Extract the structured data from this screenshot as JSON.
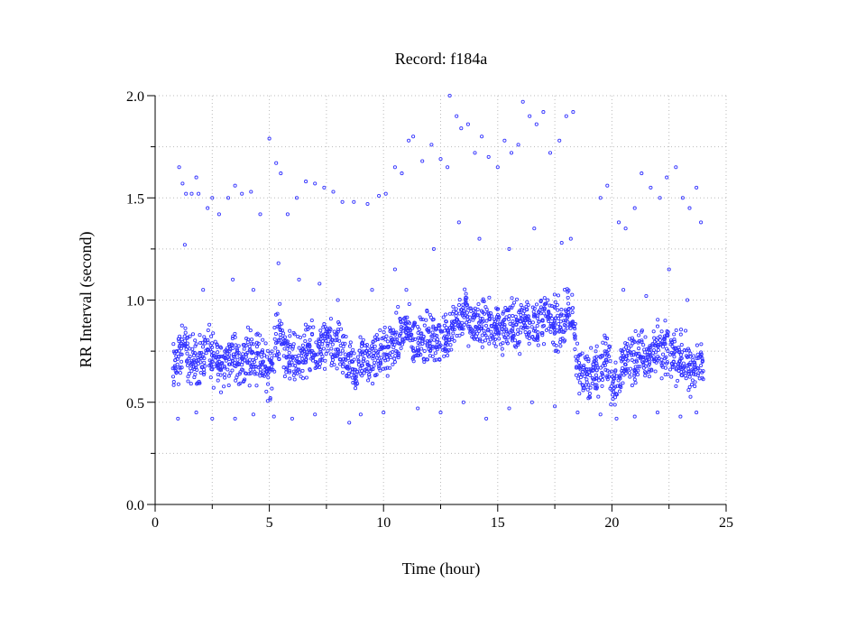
{
  "chart_data": {
    "type": "scatter",
    "title": "Record:  f184a",
    "xlabel": "Time (hour)",
    "ylabel": "RR Interval (second)",
    "xlim": [
      0,
      25
    ],
    "ylim": [
      0,
      2.0
    ],
    "x_ticks": [
      "0",
      "5",
      "10",
      "15",
      "20",
      "25"
    ],
    "y_ticks": [
      "0.0",
      "0.5",
      "1.0",
      "1.5",
      "2.0"
    ],
    "grid": true,
    "marker": "open circle",
    "series_color": "#3333ff",
    "main_trend": {
      "x": [
        0.75,
        1.0,
        1.25,
        1.5,
        1.75,
        2.0,
        2.25,
        2.5,
        2.75,
        3.0,
        3.25,
        3.5,
        3.75,
        4.0,
        4.25,
        4.5,
        4.75,
        5.0,
        5.25,
        5.5,
        5.75,
        6.0,
        6.25,
        6.5,
        6.75,
        7.0,
        7.25,
        7.5,
        7.75,
        8.0,
        8.25,
        8.5,
        8.75,
        9.0,
        9.25,
        9.5,
        9.75,
        10.0,
        10.25,
        10.5,
        10.75,
        11.0,
        11.25,
        11.5,
        11.75,
        12.0,
        12.25,
        12.5,
        12.75,
        13.0,
        13.25,
        13.5,
        13.75,
        14.0,
        14.25,
        14.5,
        14.75,
        15.0,
        15.25,
        15.5,
        15.75,
        16.0,
        16.25,
        16.5,
        16.75,
        17.0,
        17.25,
        17.5,
        17.75,
        18.0,
        18.25,
        18.5,
        18.75,
        19.0,
        19.25,
        19.5,
        19.75,
        20.0,
        20.25,
        20.5,
        20.75,
        21.0,
        21.25,
        21.5,
        21.75,
        22.0,
        22.25,
        22.5,
        22.75,
        23.0,
        23.25,
        23.5,
        23.75,
        24.0
      ],
      "y": [
        0.65,
        0.72,
        0.75,
        0.72,
        0.7,
        0.72,
        0.75,
        0.72,
        0.7,
        0.7,
        0.72,
        0.72,
        0.68,
        0.72,
        0.75,
        0.72,
        0.7,
        0.62,
        0.8,
        0.85,
        0.72,
        0.7,
        0.72,
        0.75,
        0.75,
        0.74,
        0.76,
        0.78,
        0.77,
        0.76,
        0.72,
        0.68,
        0.65,
        0.7,
        0.72,
        0.7,
        0.74,
        0.73,
        0.76,
        0.8,
        0.82,
        0.88,
        0.78,
        0.82,
        0.83,
        0.8,
        0.8,
        0.82,
        0.82,
        0.88,
        0.92,
        0.93,
        0.9,
        0.88,
        0.88,
        0.9,
        0.86,
        0.88,
        0.87,
        0.88,
        0.85,
        0.9,
        0.9,
        0.9,
        0.88,
        0.92,
        0.9,
        0.88,
        0.88,
        0.92,
        0.92,
        0.68,
        0.65,
        0.62,
        0.66,
        0.7,
        0.72,
        0.6,
        0.62,
        0.7,
        0.72,
        0.72,
        0.74,
        0.72,
        0.7,
        0.76,
        0.74,
        0.75,
        0.72,
        0.72,
        0.7,
        0.62,
        0.68,
        0.7
      ]
    },
    "outliers": [
      [
        1.05,
        1.65
      ],
      [
        1.2,
        1.57
      ],
      [
        1.35,
        1.52
      ],
      [
        1.6,
        1.52
      ],
      [
        1.8,
        1.6
      ],
      [
        1.9,
        1.52
      ],
      [
        2.3,
        1.45
      ],
      [
        2.5,
        1.5
      ],
      [
        2.8,
        1.42
      ],
      [
        3.2,
        1.5
      ],
      [
        3.5,
        1.56
      ],
      [
        3.8,
        1.52
      ],
      [
        4.2,
        1.53
      ],
      [
        4.6,
        1.42
      ],
      [
        5.0,
        1.79
      ],
      [
        5.3,
        1.67
      ],
      [
        5.5,
        1.62
      ],
      [
        5.8,
        1.42
      ],
      [
        6.2,
        1.5
      ],
      [
        6.6,
        1.58
      ],
      [
        7.0,
        1.57
      ],
      [
        7.4,
        1.55
      ],
      [
        7.8,
        1.53
      ],
      [
        8.2,
        1.48
      ],
      [
        8.7,
        1.48
      ],
      [
        9.3,
        1.47
      ],
      [
        9.8,
        1.51
      ],
      [
        10.1,
        1.52
      ],
      [
        10.5,
        1.65
      ],
      [
        10.8,
        1.62
      ],
      [
        11.1,
        1.78
      ],
      [
        11.3,
        1.8
      ],
      [
        11.7,
        1.68
      ],
      [
        12.1,
        1.76
      ],
      [
        12.5,
        1.69
      ],
      [
        12.8,
        1.65
      ],
      [
        12.9,
        2.0
      ],
      [
        13.2,
        1.9
      ],
      [
        13.4,
        1.84
      ],
      [
        13.7,
        1.86
      ],
      [
        14.0,
        1.72
      ],
      [
        14.3,
        1.8
      ],
      [
        14.6,
        1.7
      ],
      [
        15.0,
        1.65
      ],
      [
        15.3,
        1.78
      ],
      [
        15.6,
        1.72
      ],
      [
        15.9,
        1.76
      ],
      [
        16.1,
        1.97
      ],
      [
        16.4,
        1.9
      ],
      [
        16.7,
        1.86
      ],
      [
        17.0,
        1.92
      ],
      [
        17.3,
        1.72
      ],
      [
        17.7,
        1.78
      ],
      [
        18.0,
        1.9
      ],
      [
        18.3,
        1.92
      ],
      [
        19.5,
        1.5
      ],
      [
        19.8,
        1.56
      ],
      [
        20.3,
        1.38
      ],
      [
        20.6,
        1.35
      ],
      [
        21.0,
        1.45
      ],
      [
        21.3,
        1.62
      ],
      [
        21.7,
        1.55
      ],
      [
        22.1,
        1.5
      ],
      [
        22.4,
        1.6
      ],
      [
        22.8,
        1.65
      ],
      [
        23.1,
        1.5
      ],
      [
        23.4,
        1.45
      ],
      [
        23.7,
        1.55
      ],
      [
        23.9,
        1.38
      ],
      [
        1.3,
        1.27
      ],
      [
        2.1,
        1.05
      ],
      [
        3.4,
        1.1
      ],
      [
        4.3,
        1.05
      ],
      [
        5.4,
        1.18
      ],
      [
        6.3,
        1.1
      ],
      [
        7.2,
        1.08
      ],
      [
        8.0,
        1.0
      ],
      [
        9.5,
        1.05
      ],
      [
        10.5,
        1.15
      ],
      [
        11.0,
        1.05
      ],
      [
        12.2,
        1.25
      ],
      [
        13.3,
        1.38
      ],
      [
        14.2,
        1.3
      ],
      [
        15.5,
        1.25
      ],
      [
        16.6,
        1.35
      ],
      [
        17.8,
        1.28
      ],
      [
        18.2,
        1.3
      ],
      [
        20.5,
        1.05
      ],
      [
        21.5,
        1.02
      ],
      [
        22.5,
        1.15
      ],
      [
        23.3,
        1.0
      ],
      [
        1.0,
        0.42
      ],
      [
        1.8,
        0.45
      ],
      [
        2.5,
        0.42
      ],
      [
        3.5,
        0.42
      ],
      [
        4.3,
        0.44
      ],
      [
        5.2,
        0.43
      ],
      [
        6.0,
        0.42
      ],
      [
        7.0,
        0.44
      ],
      [
        8.5,
        0.4
      ],
      [
        9.0,
        0.44
      ],
      [
        10.0,
        0.45
      ],
      [
        11.5,
        0.47
      ],
      [
        12.5,
        0.45
      ],
      [
        13.5,
        0.5
      ],
      [
        14.5,
        0.42
      ],
      [
        15.5,
        0.47
      ],
      [
        16.5,
        0.5
      ],
      [
        17.5,
        0.48
      ],
      [
        18.5,
        0.45
      ],
      [
        19.5,
        0.44
      ],
      [
        20.2,
        0.42
      ],
      [
        21.0,
        0.43
      ],
      [
        22.0,
        0.45
      ],
      [
        23.0,
        0.43
      ],
      [
        23.7,
        0.45
      ]
    ]
  }
}
